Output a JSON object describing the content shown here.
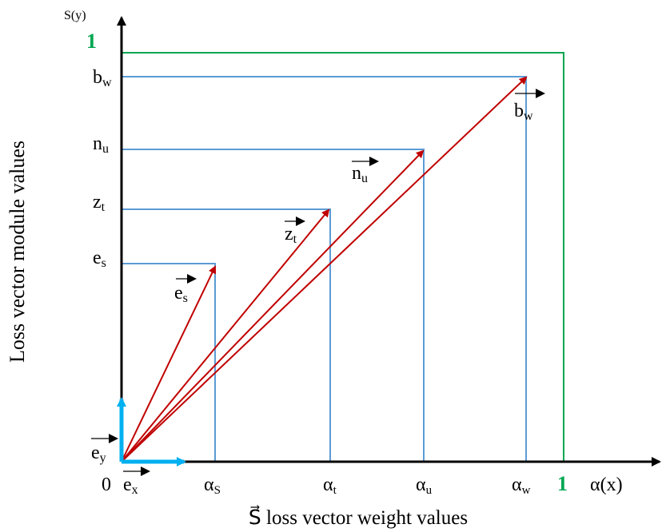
{
  "axes": {
    "y_title": "S(y)",
    "x_title": "α(x)",
    "y_axis_label": "Loss vector module values",
    "x_axis_label": "S⃗ loss vector weight values",
    "origin_label": "0"
  },
  "unit_labels": {
    "x": "1",
    "y": "1"
  },
  "y_ticks": [
    "b",
    "n",
    "z",
    "e"
  ],
  "y_tick_subs": [
    "w",
    "u",
    "t",
    "s"
  ],
  "x_ticks": [
    "α",
    "α",
    "α",
    "α"
  ],
  "x_tick_subs": [
    "S",
    "t",
    "u",
    "w"
  ],
  "vectors": [
    {
      "base": "e",
      "sub": "s"
    },
    {
      "base": "z",
      "sub": "t"
    },
    {
      "base": "n",
      "sub": "u"
    },
    {
      "base": "b",
      "sub": "w"
    }
  ],
  "basis": {
    "ex_base": "e",
    "ex_sub": "x",
    "ey_base": "e",
    "ey_sub": "y"
  },
  "colors": {
    "axis": "#000000",
    "guide_lines": "#5b9bd5",
    "vectors": "#c00000",
    "basis_vectors": "#00b0f0",
    "unit_square": "#00a651"
  }
}
